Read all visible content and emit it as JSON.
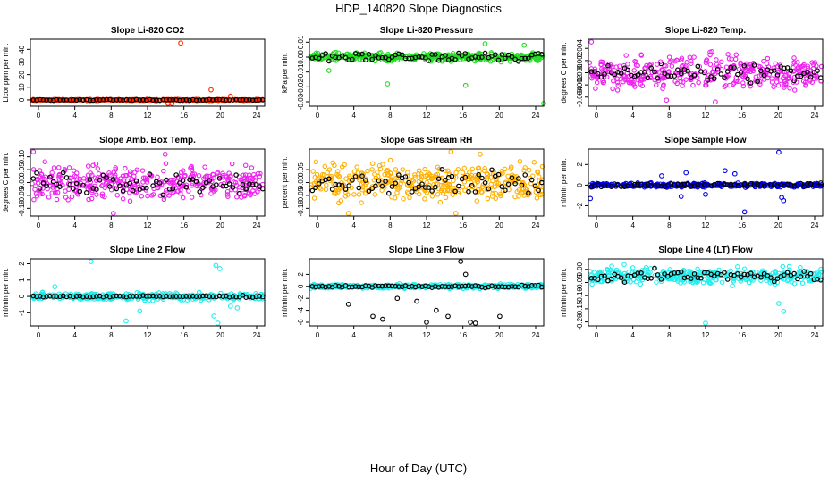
{
  "title": "HDP_140820  Slope Diagnostics",
  "shared_xlabel": "Hour of Day (UTC)",
  "colors": {
    "red": "#ff2a00",
    "green": "#22dd22",
    "magenta": "#ee22ee",
    "orange": "#ffb000",
    "blue": "#0000ee",
    "cyan": "#22eeee",
    "black": "#000000"
  },
  "chart_data": [
    {
      "type": "scatter",
      "title": "Slope Li-820 CO2",
      "ylabel": "Licor ppm per min.",
      "xlim": [
        0,
        24
      ],
      "ylim": [
        -5,
        48
      ],
      "xticks": [
        "0",
        "4",
        "8",
        "12",
        "16",
        "20",
        "24"
      ],
      "yticks": [
        {
          "v": 0,
          "label": "0"
        },
        {
          "v": 10,
          "label": "10"
        },
        {
          "v": 20,
          "label": "20"
        },
        {
          "v": 30,
          "label": "30"
        },
        {
          "v": 40,
          "label": "40"
        }
      ],
      "color": "red",
      "center": 0,
      "spread": 0.8,
      "black_spread": 0.6,
      "outliers": [
        [
          15.4,
          45
        ],
        [
          18.5,
          8
        ],
        [
          14.1,
          -3
        ],
        [
          14.5,
          -5
        ],
        [
          20.5,
          3
        ]
      ]
    },
    {
      "type": "scatter",
      "title": "Slope Li-820 Pressure",
      "ylabel": "kPa per min.",
      "xlim": [
        0,
        24
      ],
      "ylim": [
        -0.033,
        0.012
      ],
      "xticks": [
        "0",
        "4",
        "8",
        "12",
        "16",
        "20",
        "24"
      ],
      "yticks": [
        {
          "v": 0.01,
          "label": "0.01"
        },
        {
          "v": 0,
          "label": "0.00"
        },
        {
          "v": -0.01,
          "label": "-0.01"
        },
        {
          "v": -0.02,
          "label": "-0.02"
        },
        {
          "v": -0.03,
          "label": "-0.03"
        }
      ],
      "color": "green",
      "center": 0,
      "spread": 0.004,
      "black_spread": 0.004,
      "outliers": [
        [
          8,
          -0.018
        ],
        [
          16,
          -0.019
        ],
        [
          24,
          -0.032
        ],
        [
          2,
          -0.009
        ],
        [
          22,
          0.008
        ],
        [
          18,
          0.009
        ]
      ]
    },
    {
      "type": "scatter",
      "title": "Slope Li-820 Temp.",
      "ylabel": "degrees C per min.",
      "xlim": [
        0,
        24
      ],
      "ylim": [
        -0.0055,
        0.0055
      ],
      "xticks": [
        "0",
        "4",
        "8",
        "12",
        "16",
        "20",
        "24"
      ],
      "yticks": [
        {
          "v": 0.004,
          "label": "0.004"
        },
        {
          "v": 0.002,
          "label": "0.002"
        },
        {
          "v": 0,
          "label": "0.000"
        },
        {
          "v": -0.002,
          "label": "-0.002"
        },
        {
          "v": -0.004,
          "label": "-0.004"
        }
      ],
      "color": "magenta",
      "center": 0,
      "spread": 0.004,
      "black_spread": 0.002,
      "outliers": [
        [
          0.3,
          0.0052
        ],
        [
          13,
          -0.0048
        ],
        [
          8,
          -0.0045
        ]
      ]
    },
    {
      "type": "scatter",
      "title": "Slope Amb. Box Temp.",
      "ylabel": "degrees C per min.",
      "xlim": [
        0,
        24
      ],
      "ylim": [
        -0.13,
        0.13
      ],
      "xticks": [
        "0",
        "4",
        "8",
        "12",
        "16",
        "20",
        "24"
      ],
      "yticks": [
        {
          "v": 0.1,
          "label": "0.10"
        },
        {
          "v": 0.05,
          "label": "0.05"
        },
        {
          "v": 0,
          "label": "0.00"
        },
        {
          "v": -0.05,
          "label": "-0.05"
        },
        {
          "v": -0.1,
          "label": "-0.10"
        }
      ],
      "color": "magenta",
      "center": 0,
      "spread": 0.09,
      "black_spread": 0.06,
      "outliers": [
        [
          0.3,
          0.12
        ],
        [
          8.5,
          -0.12
        ],
        [
          13.8,
          0.11
        ]
      ]
    },
    {
      "type": "scatter",
      "title": "Slope Gas Stream RH",
      "ylabel": "percent per min.",
      "xlim": [
        0,
        24
      ],
      "ylim": [
        -0.13,
        0.13
      ],
      "xticks": [
        "0",
        "4",
        "8",
        "12",
        "16",
        "20",
        "24"
      ],
      "yticks": [
        {
          "v": 0.05,
          "label": "0.05"
        },
        {
          "v": 0,
          "label": "0.00"
        },
        {
          "v": -0.05,
          "label": "-0.05"
        },
        {
          "v": -0.1,
          "label": "-0.10"
        }
      ],
      "color": "orange",
      "center": 0,
      "spread": 0.1,
      "black_spread": 0.07,
      "outliers": [
        [
          4,
          -0.12
        ],
        [
          14.5,
          0.12
        ],
        [
          15,
          -0.12
        ],
        [
          17.5,
          0.11
        ]
      ]
    },
    {
      "type": "scatter",
      "title": "Slope Sample Flow",
      "ylabel": "ml/min per min.",
      "xlim": [
        0,
        24
      ],
      "ylim": [
        -3,
        3.5
      ],
      "xticks": [
        "0",
        "4",
        "8",
        "12",
        "16",
        "20",
        "24"
      ],
      "yticks": [
        {
          "v": 2,
          "label": "2"
        },
        {
          "v": 0,
          "label": "0"
        },
        {
          "v": -2,
          "label": "-2"
        }
      ],
      "color": "blue",
      "center": 0,
      "spread": 0.3,
      "black_spread": 0.25,
      "outliers": [
        [
          19.5,
          3.2
        ],
        [
          16,
          -2.6
        ],
        [
          19.8,
          -1.2
        ],
        [
          20,
          -1.5
        ],
        [
          10,
          1.2
        ],
        [
          9.5,
          -1.1
        ],
        [
          0.2,
          -1.3
        ],
        [
          14,
          1.4
        ],
        [
          15,
          1.1
        ],
        [
          7.5,
          0.9
        ],
        [
          12,
          -0.9
        ]
      ]
    },
    {
      "type": "scatter",
      "title": "Slope Line 2 Flow",
      "ylabel": "ml/min per min.",
      "xlim": [
        0,
        24
      ],
      "ylim": [
        -1.8,
        2.3
      ],
      "xticks": [
        "0",
        "4",
        "8",
        "12",
        "16",
        "20",
        "24"
      ],
      "yticks": [
        {
          "v": 2,
          "label": "2"
        },
        {
          "v": 1,
          "label": "1"
        },
        {
          "v": 0,
          "label": "0"
        },
        {
          "v": -1,
          "label": "-1"
        }
      ],
      "color": "cyan",
      "center": 0,
      "spread": 0.3,
      "black_spread": 0.08,
      "outliers": [
        [
          6.2,
          2.2
        ],
        [
          19,
          1.9
        ],
        [
          19.4,
          1.7
        ],
        [
          9.8,
          -1.5
        ],
        [
          18.8,
          -1.2
        ],
        [
          19.2,
          -1.7
        ],
        [
          11.2,
          -0.9
        ],
        [
          2.5,
          0.6
        ],
        [
          20.5,
          -0.6
        ],
        [
          21.2,
          -0.7
        ]
      ]
    },
    {
      "type": "scatter",
      "title": "Slope Line 3 Flow",
      "ylabel": "ml/min per min.",
      "xlim": [
        0,
        24
      ],
      "ylim": [
        -6.6,
        4.6
      ],
      "xticks": [
        "0",
        "4",
        "8",
        "12",
        "16",
        "20",
        "24"
      ],
      "yticks": [
        {
          "v": 2,
          "label": "2"
        },
        {
          "v": 0,
          "label": "0"
        },
        {
          "v": -2,
          "label": "-2"
        },
        {
          "v": -4,
          "label": "-4"
        },
        {
          "v": -6,
          "label": "-6"
        }
      ],
      "color": "cyan",
      "center": 0,
      "spread": 0.5,
      "black_spread": 0.3,
      "outliers": [
        [
          4,
          -3
        ],
        [
          6.5,
          -5
        ],
        [
          7.5,
          -5.5
        ],
        [
          12,
          -6
        ],
        [
          13,
          -4
        ],
        [
          14.2,
          -5
        ],
        [
          15.5,
          4.2
        ],
        [
          16,
          2
        ],
        [
          16.5,
          -6
        ],
        [
          17,
          -6.2
        ],
        [
          9,
          -2
        ],
        [
          19.5,
          -5
        ],
        [
          11,
          -2.5
        ]
      ]
    },
    {
      "type": "scatter",
      "title": "Slope Line 4 (LT) Flow",
      "ylabel": "ml/min per min.",
      "xlim": [
        0,
        24
      ],
      "ylim": [
        -0.215,
        0.04
      ],
      "xticks": [
        "0",
        "4",
        "8",
        "12",
        "16",
        "20",
        "24"
      ],
      "yticks": [
        {
          "v": 0,
          "label": "0.00"
        },
        {
          "v": -0.05,
          "label": "-0.05"
        },
        {
          "v": -0.1,
          "label": "-0.10"
        },
        {
          "v": -0.15,
          "label": "-0.15"
        },
        {
          "v": -0.2,
          "label": "-0.20"
        }
      ],
      "color": "cyan",
      "center": -0.025,
      "spread": 0.045,
      "black_spread": 0.03,
      "outliers": [
        [
          12,
          -0.21
        ],
        [
          20,
          -0.16
        ],
        [
          19.5,
          -0.13
        ]
      ]
    }
  ]
}
